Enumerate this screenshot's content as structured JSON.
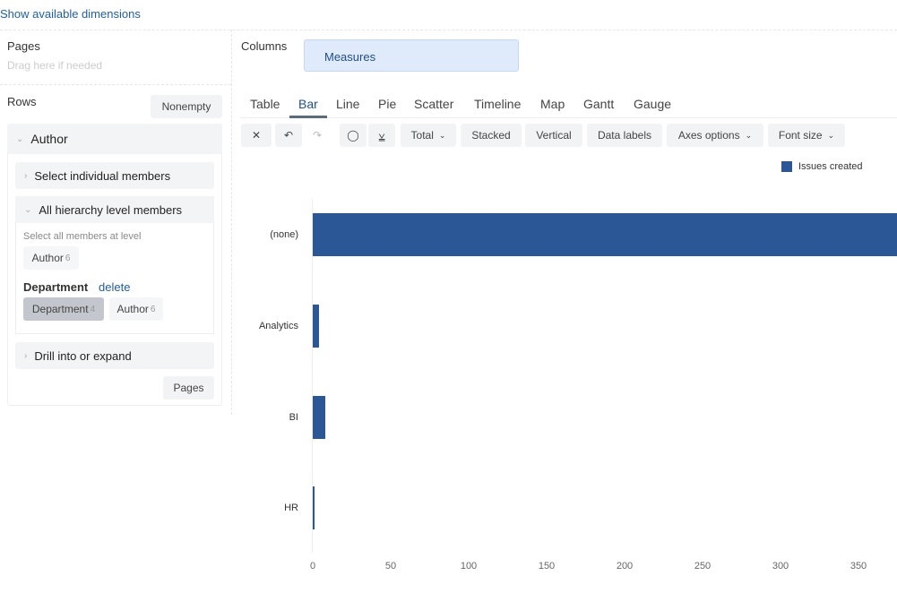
{
  "header": {
    "show_dimensions": "Show available dimensions"
  },
  "pages": {
    "label": "Pages",
    "placeholder": "Drag here if needed"
  },
  "columns": {
    "label": "Columns",
    "chip": "Measures"
  },
  "rows": {
    "label": "Rows",
    "nonempty": "Nonempty",
    "dimension": "Author",
    "select_individual": "Select individual members",
    "all_hierarchy": "All hierarchy level members",
    "select_all_at_level": "Select all members at level",
    "author_chip": "Author",
    "author_count": "6",
    "department_label": "Department",
    "delete": "delete",
    "dept_chip": "Department",
    "dept_count": "4",
    "author_chip2": "Author",
    "author_count2": "6",
    "drill": "Drill into or expand",
    "pages_btn": "Pages"
  },
  "tabs": [
    "Table",
    "Bar",
    "Line",
    "Pie",
    "Scatter",
    "Timeline",
    "Map",
    "Gantt",
    "Gauge"
  ],
  "active_tab": "Bar",
  "toolbar": {
    "total": "Total",
    "stacked": "Stacked",
    "vertical": "Vertical",
    "data_labels": "Data labels",
    "axes_options": "Axes options",
    "font_size": "Font size"
  },
  "chart_data": {
    "type": "bar",
    "orientation": "horizontal",
    "categories": [
      "(none)",
      "Analytics",
      "BI",
      "HR"
    ],
    "series": [
      {
        "name": "Issues created",
        "color": "#2b5797",
        "values": [
          380,
          4,
          8,
          1
        ]
      }
    ],
    "xticks": [
      "0",
      "50",
      "100",
      "150",
      "200",
      "250",
      "300",
      "350"
    ],
    "xlim": [
      0,
      375
    ],
    "legend": "top-right",
    "grid": false
  }
}
